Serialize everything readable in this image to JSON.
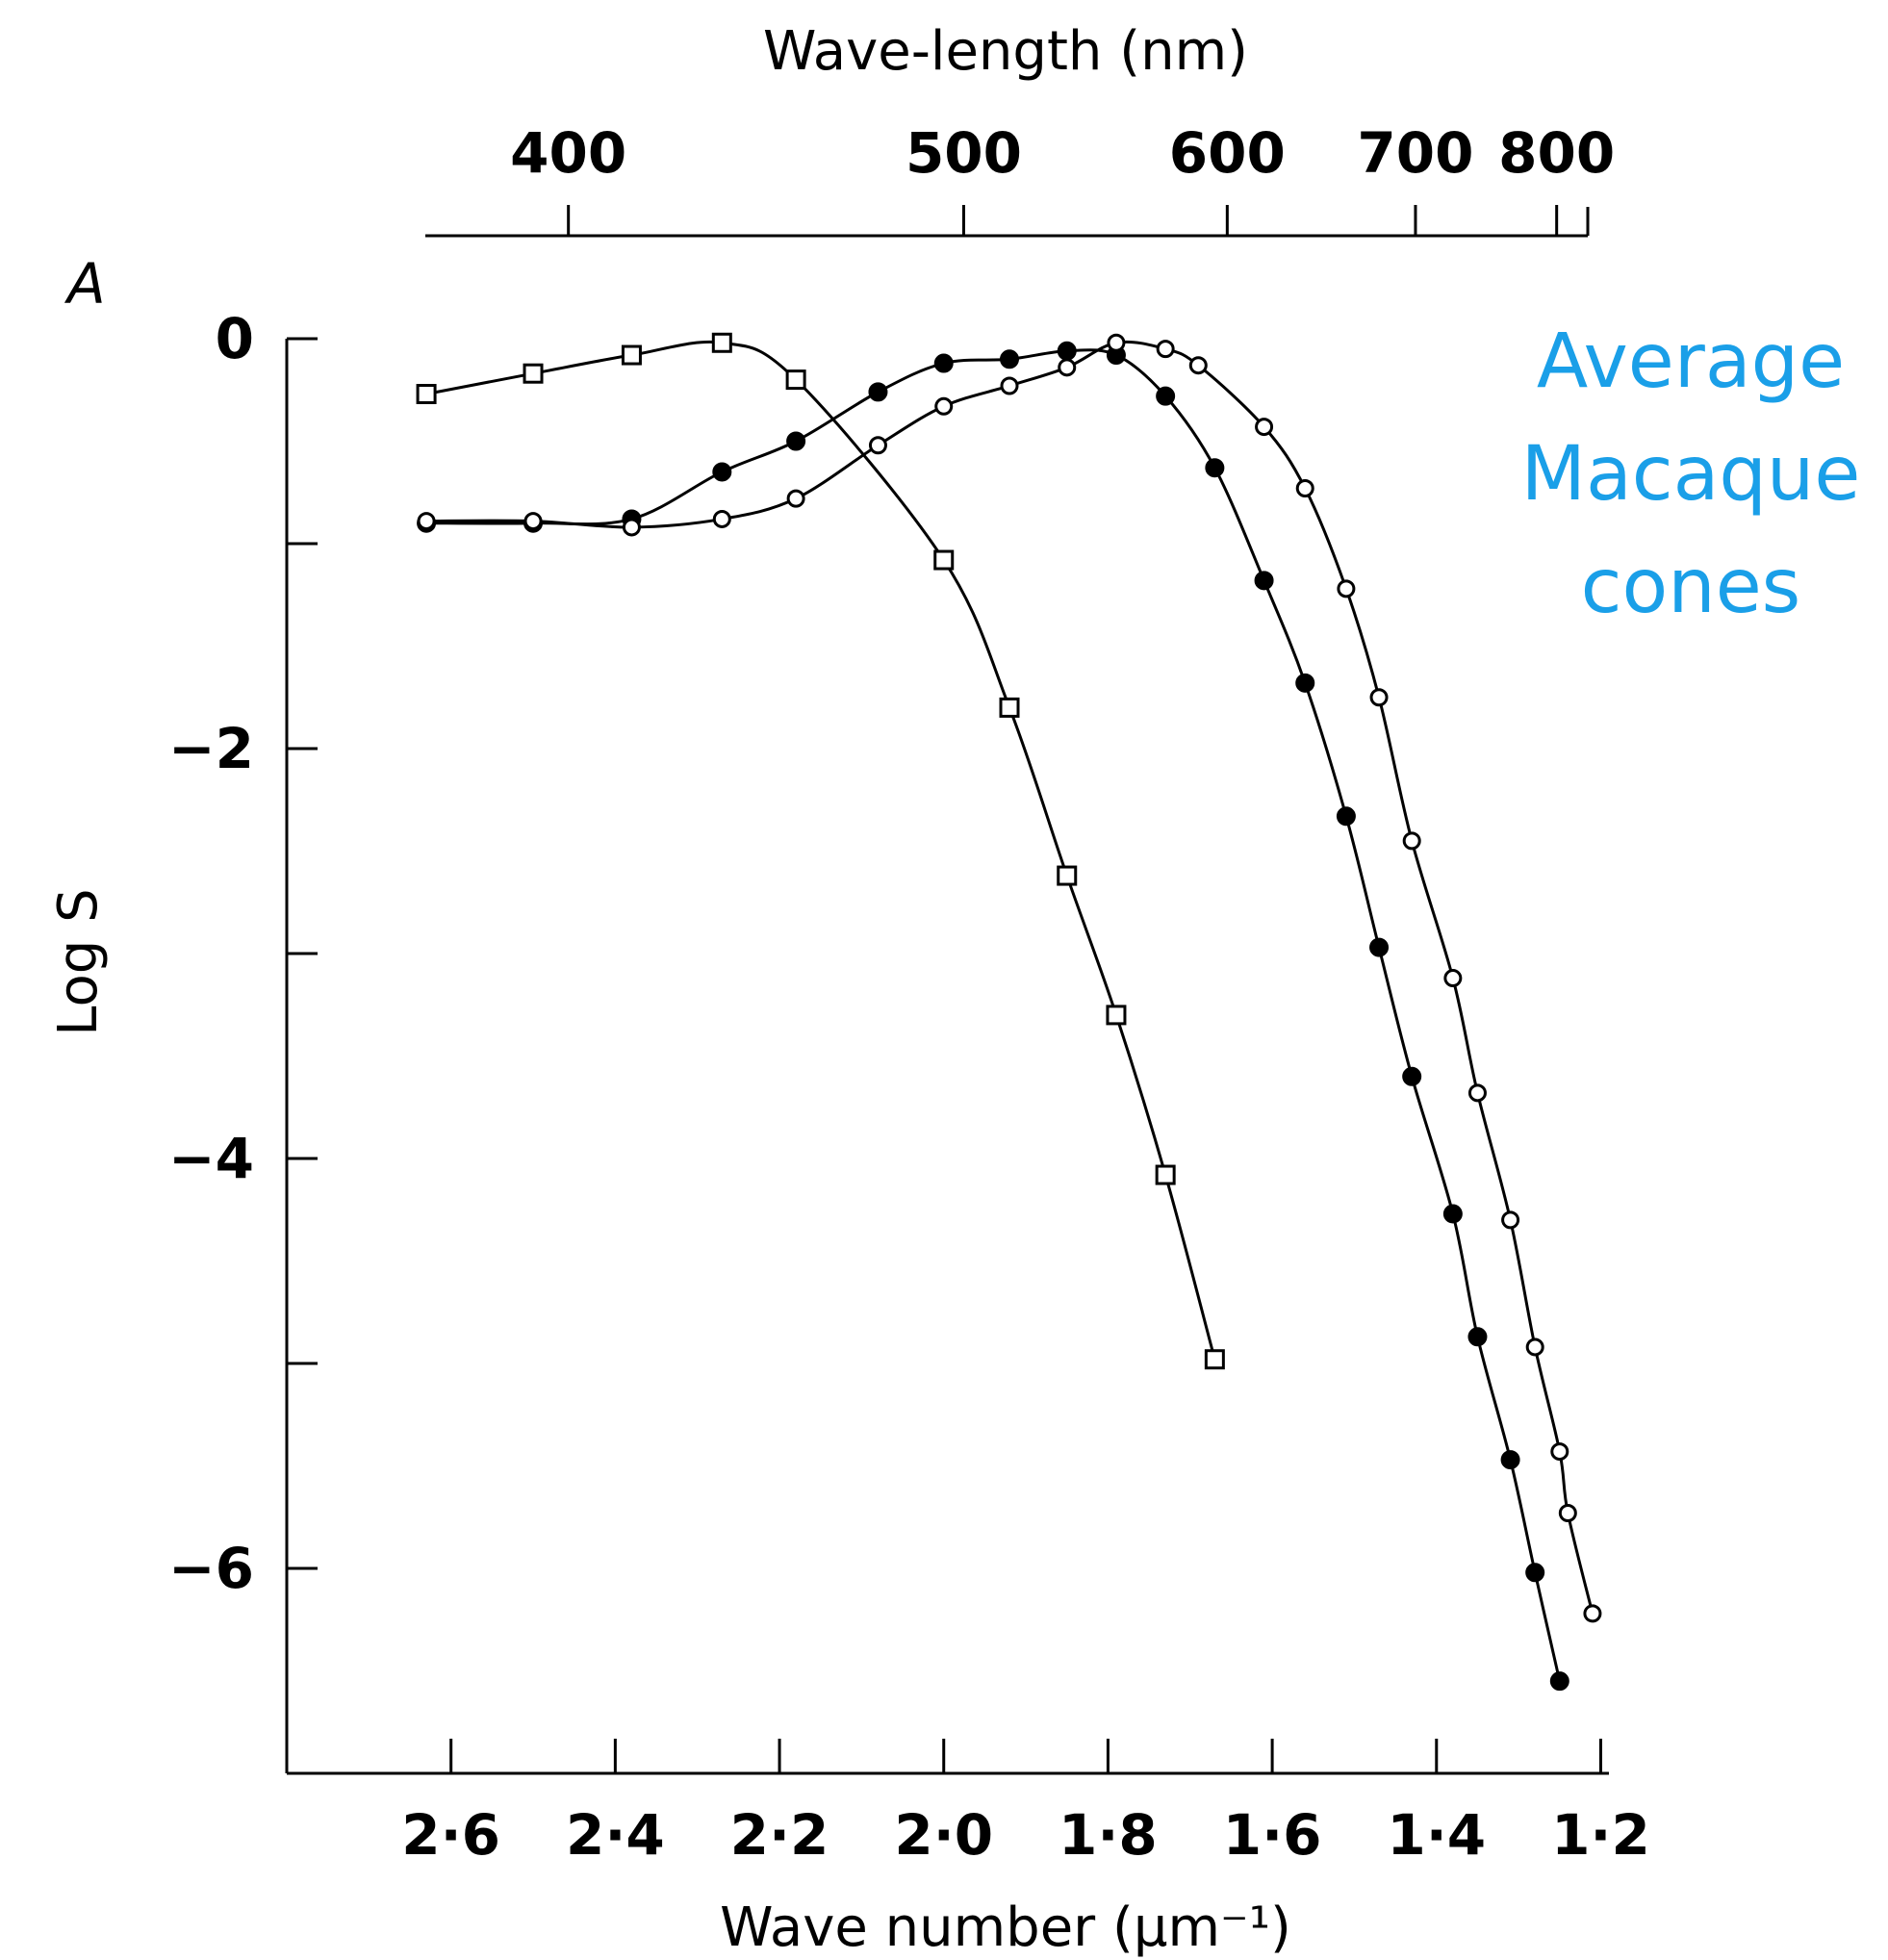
{
  "chart_data": {
    "type": "scatter",
    "panel_label": "A",
    "annotation": [
      "Average",
      "Macaque",
      "cones"
    ],
    "annotation_color": "#1a9fe8",
    "xlabel": "Wave number (μm⁻¹)",
    "x2label": "Wave-length (nm)",
    "ylabel": "Log S",
    "x_reversed": true,
    "x_ticks": [
      {
        "value": 2.6,
        "label": "2·6"
      },
      {
        "value": 2.4,
        "label": "2·4"
      },
      {
        "value": 2.2,
        "label": "2·2"
      },
      {
        "value": 2.0,
        "label": "2·0"
      },
      {
        "value": 1.8,
        "label": "1·8"
      },
      {
        "value": 1.6,
        "label": "1·6"
      },
      {
        "value": 1.4,
        "label": "1·4"
      },
      {
        "value": 1.2,
        "label": "1·2"
      }
    ],
    "x2_ticks": [
      {
        "value": 400,
        "label": "400"
      },
      {
        "value": 500,
        "label": "500"
      },
      {
        "value": 600,
        "label": "600"
      },
      {
        "value": 700,
        "label": "700"
      },
      {
        "value": 800,
        "label": "800"
      }
    ],
    "y_ticks": [
      {
        "value": 0,
        "label": "0"
      },
      {
        "value": -1,
        "label": ""
      },
      {
        "value": -2,
        "label": "−2"
      },
      {
        "value": -3,
        "label": ""
      },
      {
        "value": -4,
        "label": "−4"
      },
      {
        "value": -5,
        "label": ""
      },
      {
        "value": -6,
        "label": "−6"
      }
    ],
    "xlim": [
      2.8,
      1.19
    ],
    "x2lim": [
      373,
      826
    ],
    "ylim": [
      -7.0,
      0.0
    ],
    "series": [
      {
        "marker": "open-square",
        "x": [
          2.63,
          2.5,
          2.38,
          2.27,
          2.18,
          2.0,
          1.92,
          1.85,
          1.79,
          1.73,
          1.67
        ],
        "y": [
          -0.27,
          -0.17,
          -0.08,
          -0.02,
          -0.2,
          -1.08,
          -1.8,
          -2.62,
          -3.3,
          -4.08,
          -4.98
        ]
      },
      {
        "marker": "filled-circle",
        "x": [
          2.63,
          2.5,
          2.38,
          2.27,
          2.18,
          2.08,
          2.0,
          1.92,
          1.85,
          1.79,
          1.73,
          1.67,
          1.61,
          1.56,
          1.51,
          1.47,
          1.43,
          1.38,
          1.35,
          1.31,
          1.28,
          1.25
        ],
        "y": [
          -0.9,
          -0.9,
          -0.88,
          -0.65,
          -0.5,
          -0.26,
          -0.12,
          -0.1,
          -0.06,
          -0.08,
          -0.28,
          -0.63,
          -1.18,
          -1.68,
          -2.33,
          -2.97,
          -3.6,
          -4.27,
          -4.87,
          -5.47,
          -6.02,
          -6.55
        ]
      },
      {
        "marker": "open-circle",
        "x": [
          2.63,
          2.5,
          2.38,
          2.27,
          2.18,
          2.08,
          2.0,
          1.92,
          1.85,
          1.79,
          1.73,
          1.69,
          1.61,
          1.56,
          1.51,
          1.47,
          1.43,
          1.38,
          1.35,
          1.31,
          1.28,
          1.25,
          1.24,
          1.21
        ],
        "y": [
          -0.89,
          -0.89,
          -0.92,
          -0.88,
          -0.78,
          -0.52,
          -0.33,
          -0.23,
          -0.14,
          -0.02,
          -0.05,
          -0.13,
          -0.43,
          -0.73,
          -1.22,
          -1.75,
          -2.45,
          -3.12,
          -3.68,
          -4.3,
          -4.92,
          -5.43,
          -5.73,
          -6.22
        ]
      }
    ]
  }
}
